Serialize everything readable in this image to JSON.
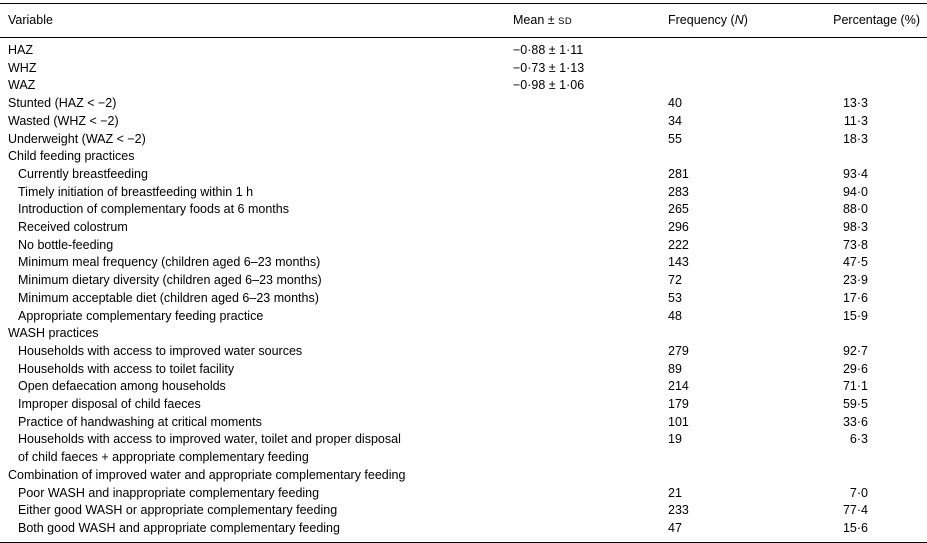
{
  "table": {
    "header": {
      "variable": "Variable",
      "mean_prefix": "Mean ± ",
      "mean_sd": "SD",
      "freq_prefix": "Frequency (",
      "freq_italic": "N",
      "freq_suffix": ")",
      "percentage": "Percentage (%)"
    },
    "rows": [
      {
        "label": "HAZ",
        "indent": 0,
        "mean": "−0·88 ± 1·11",
        "freq": "",
        "pct": ""
      },
      {
        "label": "WHZ",
        "indent": 0,
        "mean": "−0·73 ± 1·13",
        "freq": "",
        "pct": ""
      },
      {
        "label": "WAZ",
        "indent": 0,
        "mean": "−0·98 ± 1·06",
        "freq": "",
        "pct": ""
      },
      {
        "label": "Stunted (HAZ < −2)",
        "indent": 0,
        "mean": "",
        "freq": "40",
        "pct": "13·3"
      },
      {
        "label": "Wasted (WHZ < −2)",
        "indent": 0,
        "mean": "",
        "freq": "34",
        "pct": "11·3"
      },
      {
        "label": "Underweight (WAZ < −2)",
        "indent": 0,
        "mean": "",
        "freq": "55",
        "pct": "18·3"
      },
      {
        "label": "Child feeding practices",
        "indent": 0,
        "mean": "",
        "freq": "",
        "pct": ""
      },
      {
        "label": "Currently breastfeeding",
        "indent": 1,
        "mean": "",
        "freq": "281",
        "pct": "93·4"
      },
      {
        "label": "Timely initiation of breastfeeding within 1 h",
        "indent": 1,
        "mean": "",
        "freq": "283",
        "pct": "94·0"
      },
      {
        "label": "Introduction of complementary foods at 6 months",
        "indent": 1,
        "mean": "",
        "freq": "265",
        "pct": "88·0"
      },
      {
        "label": "Received colostrum",
        "indent": 1,
        "mean": "",
        "freq": "296",
        "pct": "98·3"
      },
      {
        "label": "No bottle-feeding",
        "indent": 1,
        "mean": "",
        "freq": "222",
        "pct": "73·8"
      },
      {
        "label": "Minimum meal frequency (children aged 6–23 months)",
        "indent": 1,
        "mean": "",
        "freq": "143",
        "pct": "47·5"
      },
      {
        "label": "Minimum dietary diversity (children aged 6–23 months)",
        "indent": 1,
        "mean": "",
        "freq": "72",
        "pct": "23·9"
      },
      {
        "label": "Minimum acceptable diet (children aged 6–23 months)",
        "indent": 1,
        "mean": "",
        "freq": "53",
        "pct": "17·6"
      },
      {
        "label": "Appropriate complementary feeding practice",
        "indent": 1,
        "mean": "",
        "freq": "48",
        "pct": "15·9"
      },
      {
        "label": "WASH practices",
        "indent": 0,
        "mean": "",
        "freq": "",
        "pct": ""
      },
      {
        "label": "Households with access to improved water sources",
        "indent": 1,
        "mean": "",
        "freq": "279",
        "pct": "92·7"
      },
      {
        "label": "Households with access to toilet facility",
        "indent": 1,
        "mean": "",
        "freq": "89",
        "pct": "29·6"
      },
      {
        "label": "Open defaecation among households",
        "indent": 1,
        "mean": "",
        "freq": "214",
        "pct": "71·1"
      },
      {
        "label": "Improper disposal of child faeces",
        "indent": 1,
        "mean": "",
        "freq": "179",
        "pct": "59·5"
      },
      {
        "label": "Practice of handwashing at critical moments",
        "indent": 1,
        "mean": "",
        "freq": "101",
        "pct": "33·6"
      },
      {
        "label": "Households with access to improved water, toilet and proper disposal",
        "label2": "of child faeces + appropriate complementary feeding",
        "indent": 1,
        "mean": "",
        "freq": "19",
        "pct": "6·3"
      },
      {
        "label": "Combination of improved water and appropriate complementary feeding",
        "indent": 0,
        "mean": "",
        "freq": "",
        "pct": ""
      },
      {
        "label": "Poor WASH and inappropriate complementary feeding",
        "indent": 1,
        "mean": "",
        "freq": "21",
        "pct": "7·0"
      },
      {
        "label": "Either good WASH or appropriate complementary feeding",
        "indent": 1,
        "mean": "",
        "freq": "233",
        "pct": "77·4"
      },
      {
        "label": "Both good WASH and appropriate complementary feeding",
        "indent": 1,
        "mean": "",
        "freq": "47",
        "pct": "15·6"
      }
    ]
  }
}
